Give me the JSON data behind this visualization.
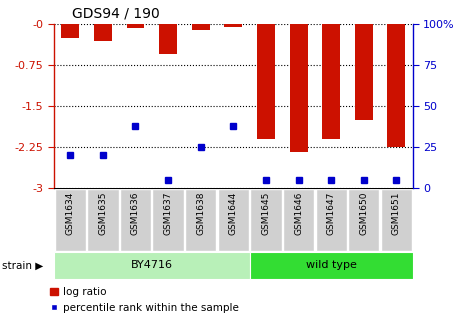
{
  "title": "GDS94 / 190",
  "samples": [
    "GSM1634",
    "GSM1635",
    "GSM1636",
    "GSM1637",
    "GSM1638",
    "GSM1644",
    "GSM1645",
    "GSM1646",
    "GSM1647",
    "GSM1650",
    "GSM1651"
  ],
  "log_ratio": [
    -0.27,
    -0.31,
    -0.09,
    -0.55,
    -0.12,
    -0.07,
    -2.1,
    -2.35,
    -2.1,
    -1.75,
    -2.25
  ],
  "percentile_rank": [
    20,
    20,
    38,
    5,
    25,
    38,
    5,
    5,
    5,
    5,
    5
  ],
  "strain_groups": [
    {
      "label": "BY4716",
      "start": 0,
      "end": 6,
      "color": "#b8f0b8"
    },
    {
      "label": "wild type",
      "start": 6,
      "end": 11,
      "color": "#33dd33"
    }
  ],
  "ylim": [
    -3.0,
    0.0
  ],
  "y_ticks_left": [
    -3.0,
    -2.25,
    -1.5,
    -0.75,
    0.0
  ],
  "y_ticks_right": [
    0,
    25,
    50,
    75,
    100
  ],
  "bar_color": "#cc1100",
  "blue_color": "#0000cc",
  "label_bg": "#d0d0d0",
  "left_tick_color": "#cc1100",
  "right_tick_color": "#0000cc",
  "bar_width": 0.55
}
